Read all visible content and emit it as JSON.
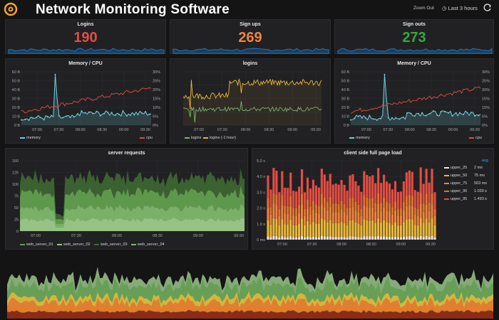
{
  "header": {
    "title": "Network Monitoring Software",
    "zoom_out": "Zoom Out",
    "time_range": "Last 3 hours"
  },
  "stats": [
    {
      "title": "Logins",
      "value": "190",
      "color": "#e24d42"
    },
    {
      "title": "Sign ups",
      "value": "269",
      "color": "#ef843c"
    },
    {
      "title": "Sign outs",
      "value": "273",
      "color": "#37a937"
    }
  ],
  "time_ticks": [
    "07:00",
    "07:30",
    "08:00",
    "08:30",
    "09:00",
    "09:30"
  ],
  "mem_cpu": {
    "title": "Memory / CPU",
    "left_ticks": [
      "0 B",
      "10 B",
      "20 B",
      "30 B",
      "40 B",
      "50 B",
      "60 B"
    ],
    "right_ticks": [
      "0%",
      "5%",
      "10%",
      "15%",
      "20%",
      "25%",
      "30%"
    ],
    "legend": [
      "memory",
      "cpu"
    ],
    "colors": [
      "#6ed0e0",
      "#e24d42"
    ]
  },
  "logins_chart": {
    "title": "logins",
    "legend": [
      "logins",
      "logins (-1 hour)"
    ],
    "colors": [
      "#7eb26d",
      "#eab839"
    ]
  },
  "server_requests": {
    "title": "server requests",
    "y_ticks": [
      "0",
      "25",
      "50",
      "75",
      "100",
      "125",
      "150"
    ],
    "legend": [
      "web_server_01",
      "web_server_02",
      "web_server_03",
      "web_server_04"
    ],
    "colors": [
      "#629e51",
      "#9ac48a",
      "#3f6833",
      "#7eb26d"
    ]
  },
  "page_load": {
    "title": "client side full page load",
    "y_ticks": [
      "0 ms",
      "1.0 s",
      "2.0 s",
      "3.0 s",
      "4.0 s",
      "5.0 s"
    ],
    "avg_label": "avg",
    "legend": [
      {
        "name": "upper_25",
        "value": "2 ms",
        "color": "#fce2de"
      },
      {
        "name": "upper_50",
        "value": "75 ms",
        "color": "#eab839"
      },
      {
        "name": "upper_75",
        "value": "503 ms",
        "color": "#ef843c"
      },
      {
        "name": "upper_90",
        "value": "1.039 s",
        "color": "#e0752d"
      },
      {
        "name": "upper_95",
        "value": "1.493 s",
        "color": "#e24d42"
      }
    ]
  }
}
